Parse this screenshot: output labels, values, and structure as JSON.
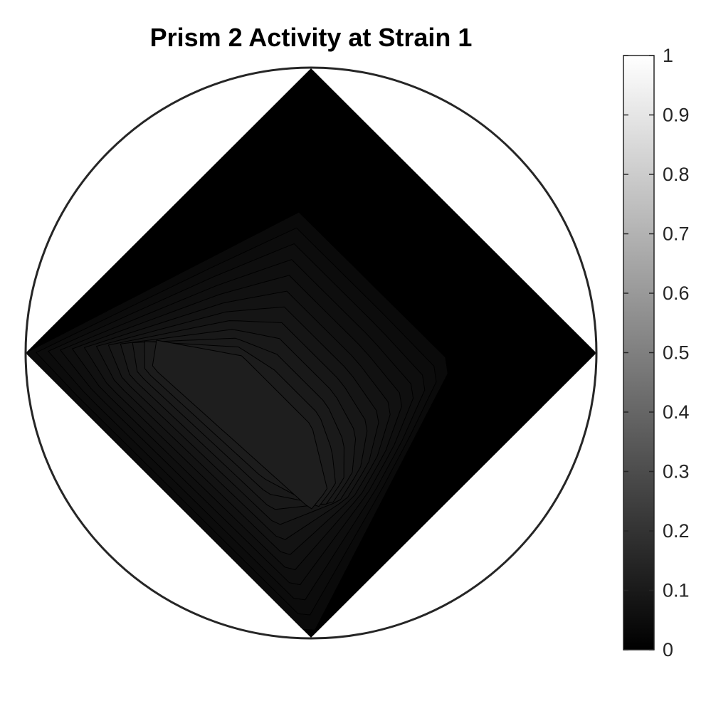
{
  "chart_data": {
    "type": "heatmap",
    "title": "Prism 2 Activity at Strain 1",
    "xlabel": "",
    "ylabel": "",
    "colormap": "gray",
    "colorbar": {
      "range": [
        0,
        1
      ],
      "ticks": [
        0,
        0.1,
        0.2,
        0.3,
        0.4,
        0.5,
        0.6,
        0.7,
        0.8,
        0.9,
        1
      ],
      "tick_labels": [
        "0",
        "0.1",
        "0.2",
        "0.3",
        "0.4",
        "0.5",
        "0.6",
        "0.7",
        "0.8",
        "0.9",
        "1"
      ],
      "placement": "right"
    },
    "domain": "diamond inscribed in unit circle",
    "background_value": 0.0,
    "peak_value": 0.12,
    "contour_levels": [
      0.01,
      0.02,
      0.03,
      0.04,
      0.05,
      0.06,
      0.07,
      0.08,
      0.09,
      0.1,
      0.11,
      0.12
    ],
    "peak_region": "lower-left quadrant",
    "grid": false
  },
  "colors": {
    "frame": "#262626",
    "background": "#ffffff",
    "contour_line": "#000000"
  }
}
